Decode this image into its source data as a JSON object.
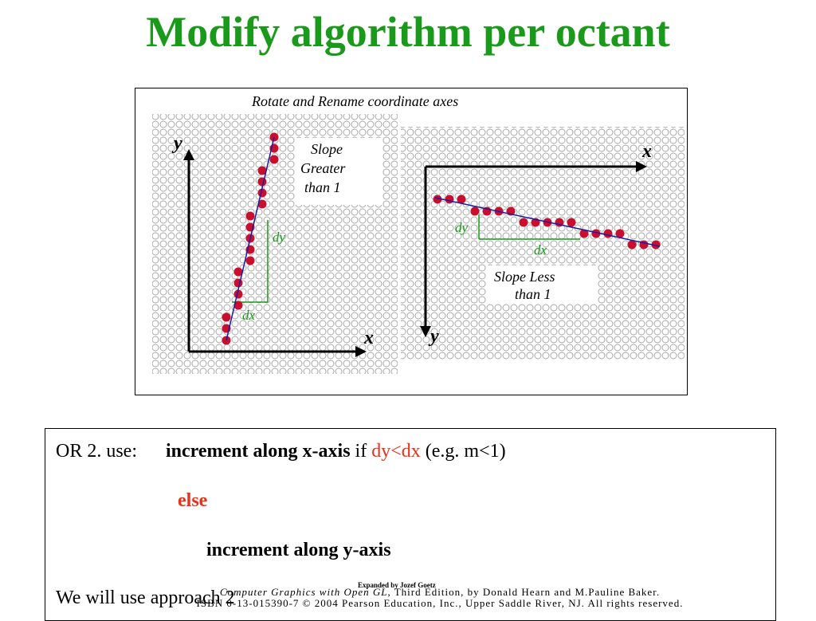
{
  "title": "Modify algorithm per octant",
  "figure": {
    "caption": "Rotate and Rename coordinate axes",
    "left_panel": {
      "y_label": "y",
      "x_label": "x",
      "slope_text": [
        "Slope",
        "Greater",
        "than 1"
      ],
      "dy": "dy",
      "dx": "dx"
    },
    "right_panel": {
      "x_label": "x",
      "y_label": "y",
      "slope_text": [
        "Slope Less",
        "than 1"
      ],
      "dy": "dy",
      "dx": "dx"
    },
    "colors": {
      "pixel": "#c8102e",
      "line": "#1a1aa8",
      "triangle": "#1a9a1a",
      "grid": "#a8a8a8"
    }
  },
  "text": {
    "line1": {
      "prefix": "OR 2. use:",
      "bold": "increment along x-axis",
      "mid": "if",
      "cond": "dy<dx",
      "suffix": "(e.g. m<1)"
    },
    "line2": {
      "else": "else"
    },
    "line3": {
      "bold": "increment along y-axis"
    },
    "line4": "We will use approach 2"
  },
  "footer": {
    "credit": "Expanded by Jozef Goetz",
    "copyright_line1_italic": "Computer Graphics with Open GL",
    "copyright_line1_rest": ", Third Edition, by Donald Hearn and M.Pauline Baker.",
    "copyright_line2": "ISBN 0-13-015390-7 © 2004 Pearson Education, Inc., Upper Saddle River, NJ. All rights reserved."
  }
}
